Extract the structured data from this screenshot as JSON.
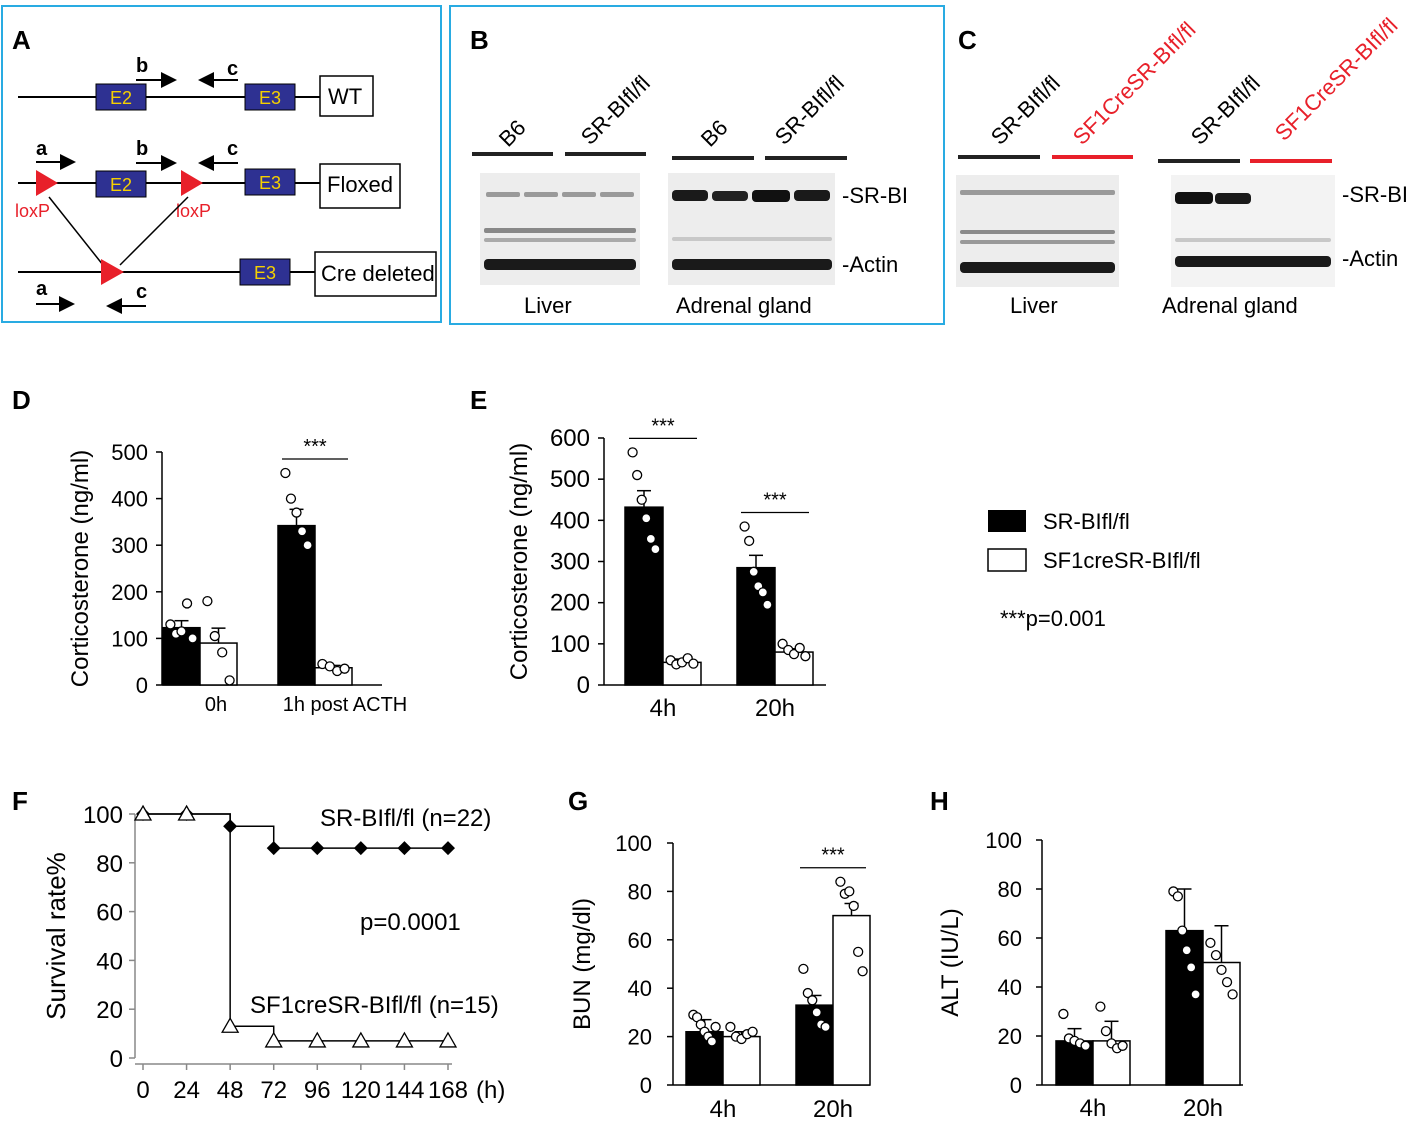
{
  "panels": {
    "A": {
      "letter": "A",
      "labels": {
        "wt": "WT",
        "floxed": "Floxed",
        "cre": "Cre deleted",
        "loxp": "loxP",
        "e2": "E2",
        "e3": "E3",
        "a": "a",
        "b": "b",
        "c": "c"
      }
    },
    "B": {
      "letter": "B",
      "lanes": [
        "B6",
        "SR-BIfl/fl",
        "B6",
        "SR-BIfl/fl"
      ],
      "bands": [
        "-SR-BI",
        "-Actin"
      ],
      "tissues": [
        "Liver",
        "Adrenal gland"
      ]
    },
    "C": {
      "letter": "C",
      "lanes": [
        "SR-BIfl/fl",
        "SF1CreSR-BIfl/fl",
        "SR-BIfl/fl",
        "SF1CreSR-BIfl/fl"
      ],
      "bands": [
        "-SR-BI",
        "-Actin"
      ],
      "tissues": [
        "Liver",
        "Adrenal gland"
      ]
    },
    "D": {
      "letter": "D"
    },
    "E": {
      "letter": "E"
    },
    "F": {
      "letter": "F"
    },
    "G": {
      "letter": "G"
    },
    "H": {
      "letter": "H"
    }
  },
  "legend": {
    "black": "SR-BIfl/fl",
    "white": "SF1creSR-BIfl/fl",
    "pvalue": "***p=0.001"
  },
  "chart_data": [
    {
      "id": "D",
      "type": "bar",
      "ylabel": "Corticosterone (ng/ml)",
      "ylim": [
        0,
        500
      ],
      "yticks": [
        0,
        100,
        200,
        300,
        400,
        500
      ],
      "categories": [
        "0h",
        "1h post ACTH"
      ],
      "series": [
        {
          "name": "SR-BIfl/fl",
          "values": [
            123,
            342
          ],
          "err": [
            15,
            35
          ],
          "points": [
            [
              130,
              110,
              115,
              175,
              100
            ],
            [
              455,
              400,
              370,
              330,
              300
            ]
          ]
        },
        {
          "name": "SF1creSR-BIfl/fl",
          "values": [
            90,
            37
          ],
          "err": [
            32,
            5
          ],
          "points": [
            [
              180,
              105,
              70,
              10
            ],
            [
              45,
              40,
              30,
              35
            ]
          ]
        }
      ],
      "annotations": [
        {
          "text": "***",
          "category": 1
        }
      ]
    },
    {
      "id": "E",
      "type": "bar",
      "ylabel": "Corticosterone (ng/ml)",
      "ylim": [
        0,
        600
      ],
      "yticks": [
        0,
        100,
        200,
        300,
        400,
        500,
        600
      ],
      "categories": [
        "4h",
        "20h"
      ],
      "series": [
        {
          "name": "SR-BIfl/fl",
          "values": [
            432,
            285
          ],
          "err": [
            40,
            30
          ],
          "points": [
            [
              565,
              510,
              450,
              405,
              355,
              330
            ],
            [
              385,
              350,
              275,
              240,
              225,
              195
            ]
          ]
        },
        {
          "name": "SF1creSR-BIfl/fl",
          "values": [
            55,
            80
          ],
          "err": [
            8,
            8
          ],
          "points": [
            [
              60,
              50,
              55,
              65,
              52
            ],
            [
              100,
              85,
              75,
              90,
              70
            ]
          ]
        }
      ],
      "annotations": [
        {
          "text": "***",
          "category": 0
        },
        {
          "text": "***",
          "category": 1
        }
      ]
    },
    {
      "id": "F",
      "type": "line",
      "ylabel": "Survival rate%",
      "ylim": [
        0,
        100
      ],
      "yticks": [
        0,
        20,
        40,
        60,
        80,
        100
      ],
      "xticks": [
        0,
        24,
        48,
        72,
        96,
        120,
        144,
        168
      ],
      "xunit": "(h)",
      "series": [
        {
          "name": "SR-BIfl/fl (n=22)",
          "marker": "diamond",
          "x": [
            0,
            24,
            48,
            72,
            96,
            120,
            144,
            168
          ],
          "y": [
            100,
            100,
            95,
            86,
            86,
            86,
            86,
            86
          ]
        },
        {
          "name": "SF1creSR-BIfl/fl (n=15)",
          "marker": "triangle",
          "x": [
            0,
            24,
            48,
            48,
            72,
            72,
            96,
            120,
            144,
            168
          ],
          "y": [
            100,
            100,
            86,
            13,
            13,
            7,
            7,
            7,
            7,
            7
          ]
        }
      ],
      "annotations": [
        {
          "text": "p=0.0001"
        }
      ]
    },
    {
      "id": "G",
      "type": "bar",
      "ylabel": "BUN (mg/dl)",
      "ylim": [
        0,
        100
      ],
      "yticks": [
        0,
        20,
        40,
        60,
        80,
        100
      ],
      "categories": [
        "4h",
        "20h"
      ],
      "series": [
        {
          "name": "SR-BIfl/fl",
          "values": [
            22,
            33
          ],
          "err": [
            5,
            4
          ],
          "points": [
            [
              29,
              28,
              25,
              22,
              20,
              18,
              24
            ],
            [
              48,
              38,
              35,
              30,
              25,
              24
            ]
          ]
        },
        {
          "name": "SF1creSR-BIfl/fl",
          "values": [
            20,
            70
          ],
          "err": [
            2,
            5
          ],
          "points": [
            [
              24,
              20,
              19,
              21,
              22
            ],
            [
              84,
              79,
              80,
              74,
              55,
              47
            ]
          ]
        }
      ],
      "annotations": [
        {
          "text": "***",
          "category": 1
        }
      ]
    },
    {
      "id": "H",
      "type": "bar",
      "ylabel": "ALT (IU/L)",
      "ylim": [
        0,
        100
      ],
      "yticks": [
        0,
        20,
        40,
        60,
        80,
        100
      ],
      "categories": [
        "4h",
        "20h"
      ],
      "series": [
        {
          "name": "SR-BIfl/fl",
          "values": [
            18,
            63
          ],
          "err": [
            5,
            17
          ],
          "points": [
            [
              29,
              19,
              18,
              17,
              16
            ],
            [
              79,
              77,
              63,
              55,
              48,
              37
            ]
          ]
        },
        {
          "name": "SF1creSR-BIfl/fl",
          "values": [
            18,
            50
          ],
          "err": [
            8,
            15
          ],
          "points": [
            [
              32,
              22,
              17,
              15,
              16
            ],
            [
              58,
              53,
              47,
              42,
              37
            ]
          ]
        }
      ]
    }
  ]
}
